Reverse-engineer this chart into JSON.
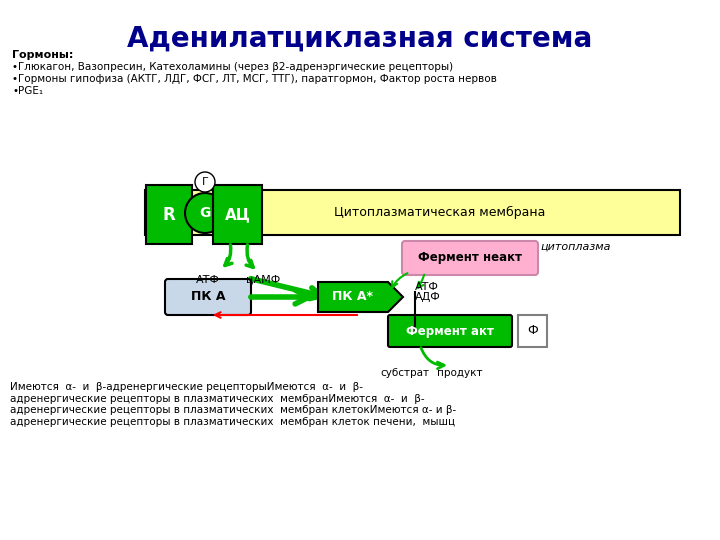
{
  "title": "Аденилатциклазная система",
  "title_color": "#00008B",
  "title_fontsize": 20,
  "hormones_header": "Гормоны:",
  "hormones_lines": [
    "•Глюкагон, Вазопресин, Катехоламины (через β2-адренэргические рецепторы)",
    "•Гормоны гипофиза (АКТГ, ЛДГ, ФСГ, ЛТ, МСГ, ТТГ), паратгормон, Фактор роста нервов",
    "•PGE₁"
  ],
  "membrane_color": "#FFFF99",
  "membrane_text": "Цитоплазматическая мембрана",
  "cytoplasm_text": "цитоплазма",
  "green_color": "#00BB00",
  "green_dark": "#009900",
  "R_label": "R",
  "G_label": "G",
  "AC_label": "АЦ",
  "gamma_label": "Г",
  "atf_label": "АТФ",
  "camp_label": "цАМФ",
  "pka_label": "ПК А",
  "pka_act_label": "ПК А*",
  "fermент_neakt_label": "Фермент неакт",
  "ferment_akt_label": "Фермент акт",
  "phi_label": "Ф",
  "atf2_label": "АТФ",
  "adf_label": "АДФ",
  "substrat_label": "субстрат",
  "produkt_label": "продукт",
  "bottom_text": "Имеются  α-  и  β-адренергические рецепторыИмеются  α-  и  β-адренергические рецепторы в плазматических  мембранИмеются  α-  и  β-адренергические рецепторы в плазматических  мембран клетокИмеются α- и β-адренергические рецепторы в плазматических  мембран клеток печени,  мышц",
  "link_color": "#0000FF"
}
